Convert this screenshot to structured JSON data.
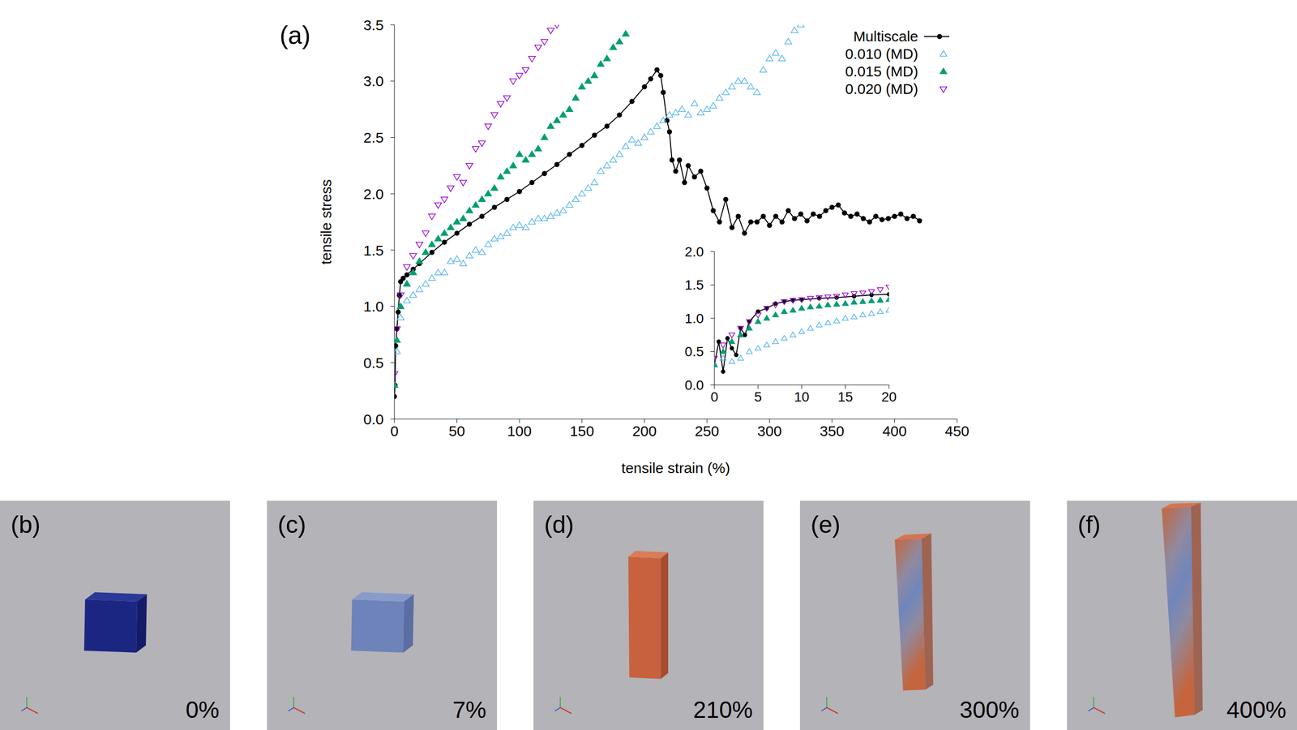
{
  "chart_data": [
    {
      "type": "scatter",
      "panel_label": "(a)",
      "x_label": "tensile strain (%)",
      "y_label": "tensile stress",
      "xlim": [
        0,
        450
      ],
      "xticks": [
        0,
        50,
        100,
        150,
        200,
        250,
        300,
        350,
        400,
        450
      ],
      "ylim": [
        0,
        3.5
      ],
      "yticks": [
        {
          "value": 0,
          "label": "0.0"
        },
        0.5,
        {
          "value": 1,
          "label": "1.0"
        },
        1.5,
        {
          "value": 2,
          "label": "2.0"
        },
        2.5,
        {
          "value": 3,
          "label": "3.0"
        },
        3.5
      ],
      "legend": "upper right",
      "series": [
        {
          "name": "Multiscale",
          "color": "#000000",
          "marker": "circle",
          "line_style": "solid",
          "x": [
            0,
            0.5,
            1,
            2,
            3,
            4,
            5,
            7,
            10,
            15,
            20,
            30,
            40,
            50,
            60,
            70,
            80,
            90,
            100,
            110,
            120,
            130,
            140,
            150,
            160,
            170,
            180,
            190,
            200,
            205,
            210,
            213,
            215,
            218,
            220,
            222,
            225,
            228,
            232,
            235,
            240,
            245,
            250,
            255,
            260,
            265,
            270,
            275,
            280,
            285,
            290,
            295,
            300,
            305,
            310,
            315,
            320,
            325,
            330,
            335,
            340,
            345,
            350,
            355,
            360,
            365,
            370,
            375,
            380,
            385,
            390,
            395,
            400,
            405,
            410,
            415,
            420
          ],
          "values": [
            0.2,
            0.3,
            0.65,
            0.8,
            0.95,
            1.1,
            1.22,
            1.25,
            1.28,
            1.33,
            1.38,
            1.48,
            1.57,
            1.65,
            1.73,
            1.8,
            1.88,
            1.95,
            2.02,
            2.1,
            2.18,
            2.26,
            2.35,
            2.43,
            2.52,
            2.6,
            2.7,
            2.82,
            2.95,
            3.02,
            3.1,
            3.05,
            2.9,
            2.65,
            2.55,
            2.3,
            2.2,
            2.3,
            2.1,
            2.25,
            2.15,
            2.2,
            2.05,
            1.85,
            1.75,
            1.95,
            1.7,
            1.8,
            1.65,
            1.75,
            1.75,
            1.8,
            1.72,
            1.8,
            1.75,
            1.85,
            1.78,
            1.82,
            1.76,
            1.82,
            1.8,
            1.85,
            1.88,
            1.9,
            1.83,
            1.8,
            1.82,
            1.78,
            1.75,
            1.8,
            1.77,
            1.78,
            1.8,
            1.82,
            1.78,
            1.8,
            1.76
          ]
        },
        {
          "name": "0.010 (MD)",
          "color": "#56b4e9",
          "marker": "triangle-open",
          "line_style": "none",
          "x": [
            0,
            2,
            5,
            10,
            15,
            20,
            25,
            30,
            35,
            40,
            45,
            50,
            55,
            60,
            65,
            70,
            75,
            80,
            85,
            90,
            95,
            100,
            105,
            110,
            115,
            120,
            125,
            130,
            135,
            140,
            145,
            150,
            155,
            160,
            165,
            170,
            175,
            180,
            185,
            190,
            195,
            200,
            205,
            210,
            215,
            220,
            225,
            230,
            235,
            240,
            245,
            250,
            255,
            260,
            265,
            270,
            275,
            280,
            285,
            290,
            295,
            300,
            305,
            310,
            315,
            320,
            325
          ],
          "values": [
            0.3,
            0.6,
            0.9,
            1.05,
            1.1,
            1.15,
            1.2,
            1.25,
            1.3,
            1.3,
            1.4,
            1.42,
            1.38,
            1.45,
            1.5,
            1.48,
            1.55,
            1.6,
            1.62,
            1.65,
            1.7,
            1.72,
            1.7,
            1.75,
            1.78,
            1.78,
            1.8,
            1.83,
            1.85,
            1.9,
            1.95,
            2.0,
            2.05,
            2.1,
            2.2,
            2.25,
            2.3,
            2.35,
            2.42,
            2.48,
            2.45,
            2.5,
            2.55,
            2.6,
            2.65,
            2.7,
            2.72,
            2.75,
            2.7,
            2.8,
            2.72,
            2.75,
            2.78,
            2.85,
            2.9,
            2.95,
            3.0,
            3.0,
            2.95,
            2.9,
            3.1,
            3.2,
            3.25,
            3.2,
            3.35,
            3.45,
            3.5
          ]
        },
        {
          "name": "0.015 (MD)",
          "color": "#009e73",
          "marker": "triangle",
          "line_style": "none",
          "x": [
            0,
            2,
            5,
            10,
            15,
            20,
            25,
            30,
            35,
            40,
            45,
            50,
            55,
            60,
            65,
            70,
            75,
            80,
            85,
            90,
            95,
            100,
            105,
            110,
            115,
            120,
            125,
            130,
            135,
            140,
            145,
            150,
            155,
            160,
            165,
            170,
            175,
            180,
            185
          ],
          "values": [
            0.3,
            0.7,
            1.0,
            1.2,
            1.3,
            1.4,
            1.48,
            1.55,
            1.6,
            1.65,
            1.7,
            1.75,
            1.78,
            1.85,
            1.9,
            1.95,
            2.0,
            2.05,
            2.15,
            2.2,
            2.25,
            2.35,
            2.3,
            2.35,
            2.4,
            2.5,
            2.6,
            2.65,
            2.7,
            2.75,
            2.85,
            2.95,
            3.0,
            3.05,
            3.15,
            3.2,
            3.3,
            3.35,
            3.42
          ]
        },
        {
          "name": "0.020 (MD)",
          "color": "#9400d3",
          "marker": "triangle-down-open",
          "line_style": "none",
          "x": [
            0,
            2,
            5,
            10,
            15,
            20,
            25,
            30,
            35,
            40,
            45,
            50,
            55,
            60,
            65,
            70,
            75,
            80,
            85,
            90,
            95,
            100,
            105,
            110,
            115,
            120,
            125,
            130
          ],
          "values": [
            0.4,
            0.8,
            1.1,
            1.35,
            1.45,
            1.55,
            1.65,
            1.8,
            1.9,
            1.95,
            2.05,
            2.15,
            2.1,
            2.25,
            2.4,
            2.45,
            2.6,
            2.7,
            2.8,
            2.85,
            3.0,
            3.05,
            3.1,
            3.2,
            3.3,
            3.35,
            3.45,
            3.5
          ]
        }
      ]
    },
    {
      "type": "scatter",
      "xlim": [
        0,
        20
      ],
      "xticks": [
        0,
        5,
        10,
        15,
        20
      ],
      "ylim": [
        0,
        2
      ],
      "yticks": [
        {
          "value": 0,
          "label": "0.0"
        },
        0.5,
        {
          "value": 1,
          "label": "1.0"
        },
        1.5,
        {
          "value": 2,
          "label": "2.0"
        }
      ],
      "series": [
        {
          "name": "Multiscale",
          "color": "#000000",
          "marker": "circle",
          "line_style": "solid",
          "x": [
            0,
            0.5,
            1,
            1.5,
            2,
            2.5,
            3,
            3.5,
            4,
            5,
            6,
            7,
            8,
            9,
            10,
            12,
            14,
            16,
            18,
            20
          ],
          "values": [
            0.3,
            0.65,
            0.2,
            0.7,
            0.55,
            0.45,
            0.85,
            0.75,
            0.95,
            1.1,
            1.15,
            1.22,
            1.25,
            1.27,
            1.28,
            1.3,
            1.31,
            1.33,
            1.35,
            1.36
          ]
        },
        {
          "name": "0.010 (MD)",
          "color": "#56b4e9",
          "marker": "triangle-open",
          "line_style": "none",
          "x": [
            0,
            1,
            2,
            3,
            4,
            5,
            6,
            7,
            8,
            9,
            10,
            11,
            12,
            13,
            14,
            15,
            16,
            17,
            18,
            19,
            20
          ],
          "values": [
            0.3,
            0.4,
            0.35,
            0.4,
            0.5,
            0.55,
            0.6,
            0.65,
            0.7,
            0.75,
            0.8,
            0.85,
            0.9,
            0.93,
            0.96,
            1.0,
            1.02,
            1.05,
            1.07,
            1.1,
            1.12
          ]
        },
        {
          "name": "0.015 (MD)",
          "color": "#009e73",
          "marker": "triangle",
          "line_style": "none",
          "x": [
            0,
            1,
            2,
            3,
            4,
            5,
            6,
            7,
            8,
            9,
            10,
            11,
            12,
            13,
            14,
            15,
            16,
            17,
            18,
            19,
            20
          ],
          "values": [
            0.3,
            0.5,
            0.65,
            0.75,
            0.85,
            0.95,
            1.0,
            1.05,
            1.1,
            1.12,
            1.15,
            1.17,
            1.18,
            1.2,
            1.21,
            1.22,
            1.24,
            1.25,
            1.26,
            1.27,
            1.28
          ]
        },
        {
          "name": "0.020 (MD)",
          "color": "#9400d3",
          "marker": "triangle-down-open",
          "line_style": "none",
          "x": [
            0,
            1,
            2,
            3,
            4,
            5,
            6,
            7,
            8,
            9,
            10,
            11,
            12,
            13,
            14,
            15,
            16,
            17,
            18,
            19,
            20
          ],
          "values": [
            0.4,
            0.6,
            0.75,
            0.85,
            0.95,
            1.05,
            1.15,
            1.2,
            1.25,
            1.27,
            1.28,
            1.3,
            1.31,
            1.32,
            1.33,
            1.35,
            1.37,
            1.38,
            1.4,
            1.43,
            1.47
          ]
        }
      ]
    }
  ],
  "panels": [
    {
      "label": "(b)",
      "caption": "0%"
    },
    {
      "label": "(c)",
      "caption": "7%"
    },
    {
      "label": "(d)",
      "caption": "210%"
    },
    {
      "label": "(e)",
      "caption": "300%"
    },
    {
      "label": "(f)",
      "caption": "400%"
    }
  ]
}
